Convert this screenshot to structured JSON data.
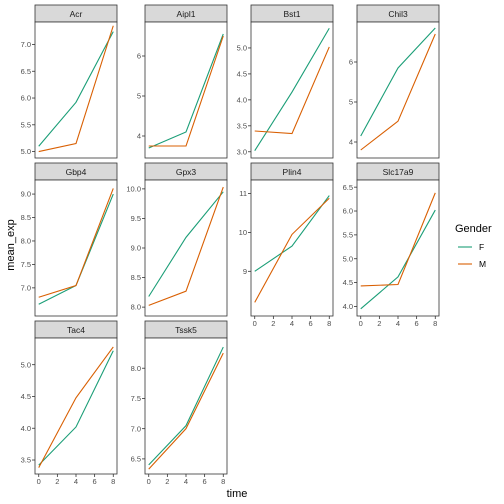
{
  "chart_data": {
    "type": "line",
    "layout": "facet_wrap",
    "xlabel": "time",
    "ylabel": "mean_exp",
    "x_ticks": [
      "0",
      "2",
      "4",
      "6",
      "8"
    ],
    "xlim": [
      -0.4,
      8.4
    ],
    "grid": false,
    "legend": {
      "title": "Gender",
      "placement": "right",
      "entries": [
        {
          "name": "F",
          "color": "#1b9e77"
        },
        {
          "name": "M",
          "color": "#d95f02"
        }
      ]
    },
    "panels": [
      {
        "title": "Acr",
        "ylim": [
          4.88,
          7.42
        ],
        "y_ticks": [
          "5.0",
          "5.5",
          "6.0",
          "6.5",
          "7.0"
        ],
        "series": [
          {
            "name": "F",
            "x": [
              0,
              4,
              8
            ],
            "y": [
              5.1,
              5.92,
              7.24
            ]
          },
          {
            "name": "M",
            "x": [
              0,
              4,
              8
            ],
            "y": [
              5.0,
              5.15,
              7.35
            ]
          }
        ]
      },
      {
        "title": "Aipl1",
        "ylim": [
          3.45,
          6.85
        ],
        "y_ticks": [
          "4",
          "5",
          "6"
        ],
        "series": [
          {
            "name": "F",
            "x": [
              0,
              4,
              8
            ],
            "y": [
              3.7,
              4.1,
              6.55
            ]
          },
          {
            "name": "M",
            "x": [
              0,
              4,
              8
            ],
            "y": [
              3.75,
              3.75,
              6.5
            ]
          }
        ]
      },
      {
        "title": "Bst1",
        "ylim": [
          2.88,
          5.5
        ],
        "y_ticks": [
          "3.0",
          "3.5",
          "4.0",
          "4.5",
          "5.0"
        ],
        "series": [
          {
            "name": "F",
            "x": [
              0,
              4,
              8
            ],
            "y": [
              3.02,
              4.15,
              5.38
            ]
          },
          {
            "name": "M",
            "x": [
              0,
              4,
              8
            ],
            "y": [
              3.4,
              3.35,
              5.02
            ]
          }
        ]
      },
      {
        "title": "Chil3",
        "ylim": [
          3.6,
          7.0
        ],
        "y_ticks": [
          "4",
          "5",
          "6"
        ],
        "series": [
          {
            "name": "F",
            "x": [
              0,
              4,
              8
            ],
            "y": [
              4.15,
              5.85,
              6.85
            ]
          },
          {
            "name": "M",
            "x": [
              0,
              4,
              8
            ],
            "y": [
              3.8,
              4.52,
              6.7
            ]
          }
        ]
      },
      {
        "title": "Gbp4",
        "ylim": [
          6.4,
          9.3
        ],
        "y_ticks": [
          "7.0",
          "7.5",
          "8.0",
          "8.5",
          "9.0"
        ],
        "series": [
          {
            "name": "F",
            "x": [
              0,
              4,
              8
            ],
            "y": [
              6.65,
              7.05,
              9.0
            ]
          },
          {
            "name": "M",
            "x": [
              0,
              4,
              8
            ],
            "y": [
              6.8,
              7.05,
              9.12
            ]
          }
        ]
      },
      {
        "title": "Gpx3",
        "ylim": [
          7.85,
          10.15
        ],
        "y_ticks": [
          "8.0",
          "8.5",
          "9.0",
          "9.5",
          "10.0"
        ],
        "series": [
          {
            "name": "F",
            "x": [
              0,
              4,
              8
            ],
            "y": [
              8.18,
              9.18,
              9.95
            ]
          },
          {
            "name": "M",
            "x": [
              0,
              4,
              8
            ],
            "y": [
              8.03,
              8.27,
              10.03
            ]
          }
        ]
      },
      {
        "title": "Plin4",
        "ylim": [
          7.85,
          11.35
        ],
        "y_ticks": [
          "9",
          "10",
          "11"
        ],
        "series": [
          {
            "name": "F",
            "x": [
              0,
              4,
              8
            ],
            "y": [
              9.0,
              9.65,
              10.95
            ]
          },
          {
            "name": "M",
            "x": [
              0,
              4,
              8
            ],
            "y": [
              8.2,
              9.95,
              10.88
            ]
          }
        ]
      },
      {
        "title": "Slc17a9",
        "ylim": [
          3.8,
          6.65
        ],
        "y_ticks": [
          "4.0",
          "4.5",
          "5.0",
          "5.5",
          "6.0",
          "6.5"
        ],
        "series": [
          {
            "name": "F",
            "x": [
              0,
              4,
              8
            ],
            "y": [
              3.95,
              4.62,
              6.02
            ]
          },
          {
            "name": "M",
            "x": [
              0,
              4,
              8
            ],
            "y": [
              4.43,
              4.46,
              6.38
            ]
          }
        ]
      },
      {
        "title": "Tac4",
        "ylim": [
          3.28,
          5.42
        ],
        "y_ticks": [
          "3.5",
          "4.0",
          "4.5",
          "5.0"
        ],
        "series": [
          {
            "name": "F",
            "x": [
              0,
              4,
              8
            ],
            "y": [
              3.42,
              4.02,
              5.22
            ]
          },
          {
            "name": "M",
            "x": [
              0,
              4,
              8
            ],
            "y": [
              3.38,
              4.48,
              5.28
            ]
          }
        ]
      },
      {
        "title": "Tssk5",
        "ylim": [
          6.25,
          8.5
        ],
        "y_ticks": [
          "6.5",
          "7.0",
          "7.5",
          "8.0"
        ],
        "series": [
          {
            "name": "F",
            "x": [
              0,
              4,
              8
            ],
            "y": [
              6.4,
              7.05,
              8.35
            ]
          },
          {
            "name": "M",
            "x": [
              0,
              4,
              8
            ],
            "y": [
              6.33,
              7.0,
              8.25
            ]
          }
        ]
      }
    ]
  }
}
